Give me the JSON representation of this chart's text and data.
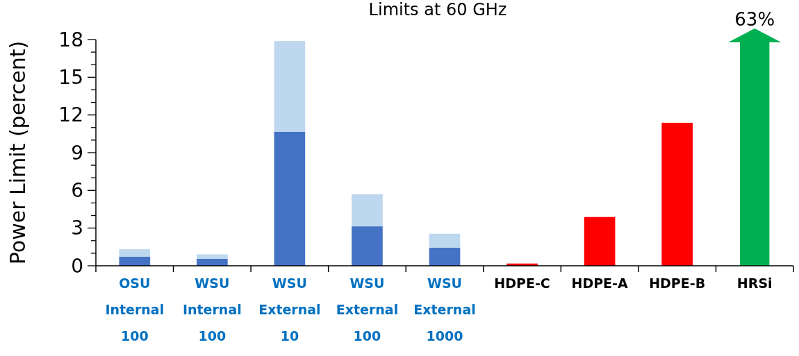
{
  "chart_data": {
    "type": "bar",
    "title": "Limits at 60 GHz",
    "ylabel": "Power Limit (percent)",
    "categories": [
      "OSU\nInternal\n100",
      "WSU\nInternal\n100",
      "WSU\nExternal\n10",
      "WSU\nExternal\n100",
      "WSU\nExternal\n1000",
      "HDPE-C",
      "HDPE-A",
      "HDPE-B",
      "HRSi"
    ],
    "stacked": true,
    "series": [
      {
        "color": "#4472c4",
        "values": [
          0.73,
          0.56,
          10.67,
          3.14,
          1.44,
          null,
          null,
          null,
          null
        ]
      },
      {
        "color": "#bdd7ee",
        "values": [
          0.59,
          0.35,
          7.21,
          2.55,
          1.11,
          null,
          null,
          null,
          null
        ]
      },
      {
        "color": "#ff0000",
        "values": [
          null,
          null,
          null,
          null,
          null,
          0.18,
          3.88,
          11.38,
          null
        ]
      }
    ],
    "annotations": [
      "63%"
    ],
    "ylim": [
      0,
      18
    ],
    "yticks": [
      0,
      {
        "value": 1,
        "label": null
      },
      {
        "value": 2,
        "label": null
      },
      3,
      {
        "value": 4,
        "label": null
      },
      {
        "value": 5,
        "label": null
      },
      6,
      {
        "value": 7,
        "label": null
      },
      {
        "value": 8,
        "label": null
      },
      9,
      {
        "value": 10,
        "label": null
      },
      {
        "value": 11,
        "label": null
      },
      12,
      {
        "value": 13,
        "label": null
      },
      {
        "value": 14,
        "label": null
      },
      15,
      {
        "value": 16,
        "label": null
      },
      {
        "value": 17,
        "label": null
      },
      18
    ],
    "grid": false
  }
}
